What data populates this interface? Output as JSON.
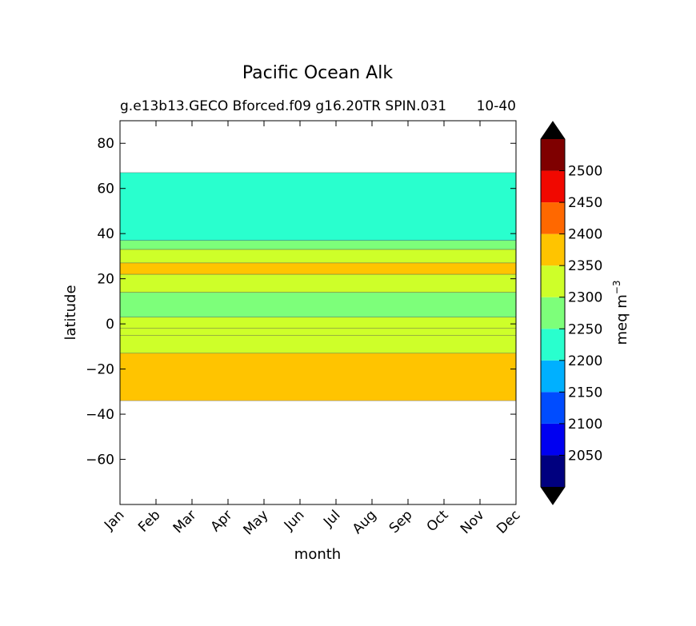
{
  "chart_data": {
    "type": "contour",
    "title": "Pacific Ocean Alk",
    "subtitle_left": "g.e13b13.GECO Bforced.f09 g16.20TR SPIN.031",
    "subtitle_right": "10-40",
    "xlabel": "month",
    "ylabel": "latitude",
    "x_categories": [
      "Jan",
      "Feb",
      "Mar",
      "Apr",
      "May",
      "Jun",
      "Jul",
      "Aug",
      "Sep",
      "Oct",
      "Nov",
      "Dec"
    ],
    "ylim": [
      -80,
      90
    ],
    "y_ticks": [
      80,
      60,
      40,
      20,
      0,
      -20,
      -40,
      -60
    ],
    "data_lat_range": [
      -34,
      67
    ],
    "colorbar": {
      "label": "meq m",
      "label_superscript": "−3",
      "extend": "both",
      "levels": [
        2000,
        2050,
        2100,
        2150,
        2200,
        2250,
        2300,
        2350,
        2400,
        2450,
        2500,
        2550
      ],
      "tick_labels": [
        "2050",
        "2100",
        "2150",
        "2200",
        "2250",
        "2300",
        "2350",
        "2400",
        "2450",
        "2500"
      ],
      "colors": [
        "#00007f",
        "#0000f1",
        "#004cff",
        "#00b0ff",
        "#29ffce",
        "#7dff7a",
        "#ceff29",
        "#ffc400",
        "#ff6800",
        "#f10800",
        "#7f0000"
      ],
      "under_color": "#000000",
      "over_color": "#000000"
    },
    "bands": [
      {
        "lat_min": -34,
        "lat_max": -13,
        "value": 2375
      },
      {
        "lat_min": -13,
        "lat_max": -5,
        "value": 2325
      },
      {
        "lat_min": -5,
        "lat_max": -2,
        "value": 2325
      },
      {
        "lat_min": -2,
        "lat_max": 3,
        "value": 2325
      },
      {
        "lat_min": 3,
        "lat_max": 14,
        "value": 2275
      },
      {
        "lat_min": 14,
        "lat_max": 22,
        "value": 2325
      },
      {
        "lat_min": 22,
        "lat_max": 27,
        "value": 2375
      },
      {
        "lat_min": 27,
        "lat_max": 33,
        "value": 2325
      },
      {
        "lat_min": 33,
        "lat_max": 37,
        "value": 2275
      },
      {
        "lat_min": 37,
        "lat_max": 67,
        "value": 2225
      }
    ]
  }
}
